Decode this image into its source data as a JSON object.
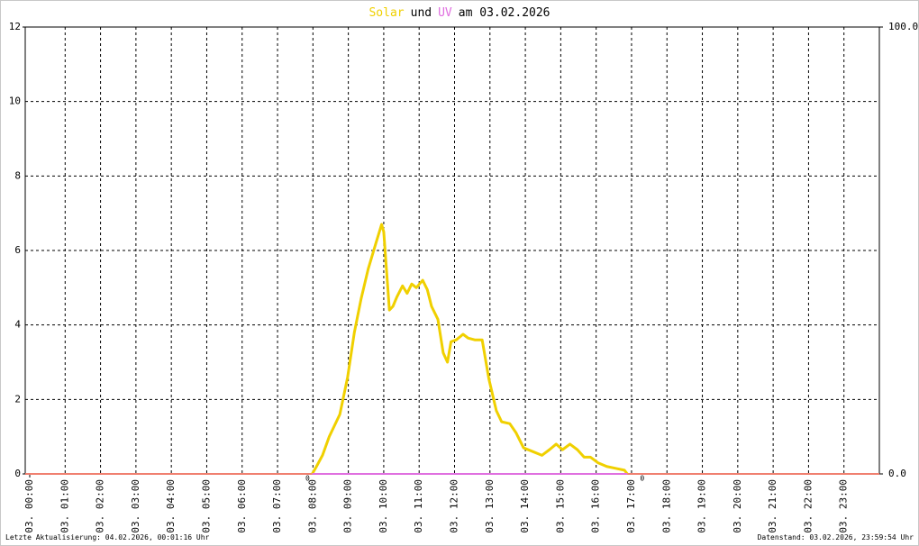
{
  "chart_data": {
    "type": "line",
    "title": [
      {
        "text": "Solar",
        "color": "#f0d000"
      },
      {
        "text": "und"
      },
      {
        "text": "UV",
        "color": "#e070e0"
      },
      {
        "text": "am 03.02.2026"
      }
    ],
    "footer_left": "Letzte Aktualisierung: 04.02.2026, 00:01:16 Uhr",
    "footer_right": "Datenstand: 03.02.2026, 23:59:54 Uhr",
    "xlim": [
      0,
      24
    ],
    "ylim": [
      0,
      12
    ],
    "y2lim": [
      0,
      100
    ],
    "grid": true,
    "xticks": [
      {
        "value": 0,
        "label": "03. 00:00"
      },
      {
        "value": 1,
        "label": "03. 01:00"
      },
      {
        "value": 2,
        "label": "03. 02:00"
      },
      {
        "value": 3,
        "label": "03. 03:00"
      },
      {
        "value": 4,
        "label": "03. 04:00"
      },
      {
        "value": 5,
        "label": "03. 05:00"
      },
      {
        "value": 6,
        "label": "03. 06:00"
      },
      {
        "value": 7,
        "label": "03. 07:00"
      },
      {
        "value": 8,
        "label": "03. 08:00"
      },
      {
        "value": 9,
        "label": "03. 09:00"
      },
      {
        "value": 10,
        "label": "03. 10:00"
      },
      {
        "value": 11,
        "label": "03. 11:00"
      },
      {
        "value": 12,
        "label": "03. 12:00"
      },
      {
        "value": 13,
        "label": "03. 13:00"
      },
      {
        "value": 14,
        "label": "03. 14:00"
      },
      {
        "value": 15,
        "label": "03. 15:00"
      },
      {
        "value": 16,
        "label": "03. 16:00"
      },
      {
        "value": 17,
        "label": "03. 17:00"
      },
      {
        "value": 18,
        "label": "03. 18:00"
      },
      {
        "value": 19,
        "label": "03. 19:00"
      },
      {
        "value": 20,
        "label": "03. 20:00"
      },
      {
        "value": 21,
        "label": "03. 21:00"
      },
      {
        "value": 22,
        "label": "03. 22:00"
      },
      {
        "value": 23,
        "label": "03. 23:00"
      }
    ],
    "yticks": [
      0,
      2,
      4,
      6,
      8,
      10,
      12
    ],
    "y2ticks": [
      {
        "value": 0,
        "label": "0.0"
      },
      {
        "value": 100,
        "label": "100.0"
      }
    ],
    "series": [
      {
        "color": "#f0d000",
        "x": [
          7.98,
          8.1,
          8.27,
          8.46,
          8.66,
          8.76,
          8.98,
          9.17,
          9.36,
          9.56,
          9.78,
          9.94,
          10.0,
          10.16,
          10.26,
          10.37,
          10.53,
          10.66,
          10.79,
          10.92,
          11.1,
          11.23,
          11.35,
          11.53,
          11.68,
          11.8,
          11.9,
          12.05,
          12.24,
          12.38,
          12.57,
          12.78,
          12.97,
          13.18,
          13.33,
          13.56,
          13.74,
          13.95,
          14.21,
          14.47,
          14.68,
          14.87,
          15.05,
          15.26,
          15.47,
          15.66,
          15.84,
          16.05,
          16.3,
          16.55,
          16.8,
          16.88
        ],
        "values": [
          0,
          0.2,
          0.5,
          1.0,
          1.4,
          1.6,
          2.6,
          3.8,
          4.7,
          5.5,
          6.2,
          6.7,
          6.5,
          4.4,
          4.5,
          4.75,
          5.05,
          4.85,
          5.1,
          5.0,
          5.2,
          4.95,
          4.5,
          4.15,
          3.25,
          3.0,
          3.55,
          3.6,
          3.75,
          3.65,
          3.6,
          3.6,
          2.55,
          1.7,
          1.4,
          1.35,
          1.1,
          0.7,
          0.6,
          0.5,
          0.65,
          0.8,
          0.65,
          0.8,
          0.65,
          0.45,
          0.45,
          0.3,
          0.2,
          0.15,
          0.1,
          0
        ]
      },
      {
        "color": "#e070e0",
        "axis": "y2",
        "x": [
          7.98,
          16.88
        ],
        "values": [
          0,
          0
        ]
      }
    ],
    "annotations": [
      {
        "x": 7.85,
        "text": "0",
        "color": "#d02020"
      },
      {
        "x": 17.3,
        "text": "0",
        "color": "#d02020"
      }
    ]
  }
}
